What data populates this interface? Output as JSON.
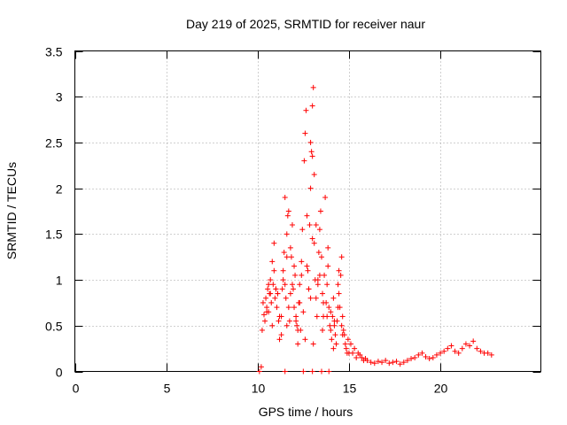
{
  "chart_data": {
    "type": "scatter",
    "title": "Day 219 of 2025, SRMTID for receiver naur",
    "xlabel": "GPS time / hours",
    "ylabel": "SRMTID / TECUs",
    "xlim": [
      0,
      25.5
    ],
    "ylim": [
      0,
      3.5
    ],
    "x_ticks": [
      0,
      5,
      10,
      15,
      20
    ],
    "x_tick_labels": [
      "0",
      "5",
      "10",
      "15",
      "20"
    ],
    "y_ticks": [
      0,
      0.5,
      1,
      1.5,
      2,
      2.5,
      3,
      3.5
    ],
    "y_tick_labels": [
      "0",
      "0.5",
      "1",
      "1.5",
      "2",
      "2.5",
      "3",
      "3.5"
    ],
    "grid": true,
    "marker": "+",
    "color": "#ff0000",
    "series": [
      {
        "name": "SRMTID",
        "x": [
          10.1,
          10.2,
          10.25,
          10.3,
          10.35,
          10.4,
          10.45,
          10.5,
          10.55,
          10.6,
          10.65,
          10.7,
          10.75,
          10.8,
          10.85,
          10.9,
          10.95,
          11.0,
          11.05,
          11.1,
          11.15,
          11.2,
          11.3,
          11.35,
          11.4,
          11.45,
          11.5,
          11.55,
          11.6,
          11.65,
          11.7,
          11.75,
          11.8,
          11.85,
          11.9,
          11.95,
          12.0,
          12.05,
          12.1,
          12.15,
          12.2,
          12.25,
          12.3,
          12.35,
          12.4,
          12.45,
          12.5,
          12.55,
          12.6,
          12.65,
          12.7,
          12.75,
          12.8,
          12.85,
          12.9,
          12.95,
          13.0,
          13.05,
          13.1,
          13.15,
          13.2,
          13.25,
          13.3,
          13.35,
          13.4,
          13.45,
          13.5,
          13.55,
          13.6,
          13.65,
          13.7,
          13.75,
          13.8,
          13.85,
          13.9,
          13.95,
          14.0,
          14.05,
          14.1,
          14.15,
          14.2,
          14.25,
          14.3,
          14.35,
          14.4,
          14.45,
          14.5,
          14.55,
          14.6,
          14.65,
          14.7,
          14.75,
          14.8,
          14.85,
          14.9,
          14.95,
          15.0,
          15.1,
          15.2,
          15.3,
          15.4,
          15.5,
          15.6,
          15.7,
          15.8,
          15.9,
          16.0,
          16.2,
          16.4,
          16.6,
          16.8,
          17.0,
          17.2,
          17.4,
          17.6,
          17.8,
          18.0,
          18.2,
          18.4,
          18.6,
          18.8,
          19.0,
          19.2,
          19.4,
          19.6,
          19.8,
          20.0,
          20.2,
          20.4,
          20.6,
          20.8,
          21.0,
          21.2,
          21.4,
          21.6,
          21.8,
          22.0,
          22.2,
          22.4,
          22.6,
          22.8,
          10.6,
          10.7,
          10.9,
          11.0,
          11.2,
          11.4,
          11.6,
          11.8,
          12.0,
          12.2,
          12.4,
          12.6,
          12.8,
          13.0,
          13.2,
          13.4,
          13.6,
          13.8,
          14.0,
          14.2,
          14.4,
          14.6,
          10.5,
          10.8,
          11.1,
          11.3,
          11.6,
          11.9,
          12.1,
          12.3,
          12.7,
          12.9,
          13.05,
          13.3,
          13.55,
          13.85,
          14.15,
          14.45,
          14.65,
          11.5,
          11.7,
          12.9,
          13.0,
          13.1,
          11.5,
          12.5,
          13.0,
          13.5,
          13.9
        ],
        "y": [
          0.0,
          0.05,
          0.45,
          0.75,
          0.62,
          0.55,
          0.8,
          0.7,
          0.9,
          0.65,
          0.85,
          1.0,
          0.75,
          1.2,
          0.95,
          1.1,
          0.8,
          0.9,
          0.7,
          0.85,
          0.55,
          0.35,
          0.6,
          0.9,
          1.1,
          1.3,
          0.95,
          0.8,
          1.5,
          1.7,
          0.7,
          0.55,
          1.35,
          1.25,
          1.6,
          0.9,
          0.7,
          1.05,
          0.6,
          0.5,
          0.3,
          0.75,
          0.95,
          0.45,
          1.2,
          1.55,
          0.65,
          2.3,
          2.6,
          2.85,
          1.7,
          1.1,
          0.9,
          1.6,
          2.0,
          2.4,
          2.9,
          3.1,
          1.4,
          1.0,
          0.8,
          0.6,
          0.95,
          1.3,
          1.55,
          1.75,
          1.25,
          0.85,
          0.6,
          1.05,
          1.9,
          0.75,
          0.95,
          1.15,
          0.7,
          0.5,
          0.45,
          0.35,
          0.6,
          0.25,
          0.5,
          0.4,
          0.3,
          0.55,
          0.95,
          0.85,
          0.7,
          1.05,
          1.25,
          0.6,
          0.45,
          0.4,
          0.3,
          0.25,
          0.2,
          0.35,
          0.2,
          0.3,
          0.2,
          0.25,
          0.15,
          0.2,
          0.18,
          0.15,
          0.12,
          0.14,
          0.12,
          0.1,
          0.09,
          0.11,
          0.1,
          0.12,
          0.09,
          0.1,
          0.11,
          0.08,
          0.1,
          0.12,
          0.14,
          0.15,
          0.18,
          0.2,
          0.16,
          0.14,
          0.15,
          0.18,
          0.2,
          0.22,
          0.25,
          0.28,
          0.22,
          0.2,
          0.25,
          0.3,
          0.28,
          0.33,
          0.25,
          0.22,
          0.2,
          0.2,
          0.18,
          0.95,
          0.85,
          1.4,
          0.9,
          0.6,
          1.0,
          0.5,
          0.85,
          1.15,
          0.45,
          1.05,
          0.35,
          0.9,
          2.35,
          1.6,
          1.05,
          0.75,
          0.6,
          0.65,
          0.55,
          0.7,
          0.5,
          0.65,
          0.5,
          0.85,
          0.4,
          1.25,
          0.95,
          0.55,
          0.75,
          1.15,
          0.8,
          0.3,
          1.0,
          0.45,
          1.35,
          0.8,
          1.1,
          0.4,
          1.9,
          1.75,
          2.5,
          1.45,
          2.15,
          0.0,
          0.0,
          0.0,
          0.0,
          0.0
        ]
      }
    ]
  }
}
